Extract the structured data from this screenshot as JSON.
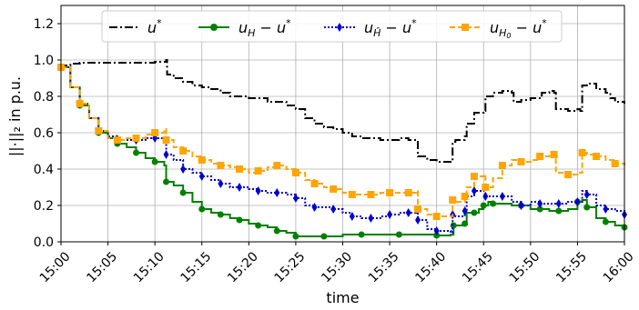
{
  "chart_data": {
    "type": "line",
    "xlabel": "time",
    "ylabel": "||·||₂ in p.u.",
    "x_ticks": [
      "15:00",
      "15:05",
      "15:10",
      "15:15",
      "15:20",
      "15:25",
      "15:30",
      "15:35",
      "15:40",
      "15:45",
      "15:50",
      "15:55",
      "16:00"
    ],
    "y_ticks": [
      "0.0",
      "0.2",
      "0.4",
      "0.6",
      "0.8",
      "1.0",
      "1.2"
    ],
    "xlim": [
      0,
      60
    ],
    "ylim": [
      0,
      1.3
    ],
    "grid": true,
    "legend_position": "top",
    "series": [
      {
        "name": "u*",
        "color": "#000000",
        "linestyle": "dashdot",
        "marker": "none",
        "points": [
          [
            0,
            0.96
          ],
          [
            0.5,
            0.97
          ],
          [
            1,
            0.98
          ],
          [
            2,
            0.985
          ],
          [
            4,
            0.985
          ],
          [
            6,
            0.985
          ],
          [
            8,
            0.985
          ],
          [
            10,
            0.99
          ],
          [
            11.2,
            1.0
          ],
          [
            11.3,
            0.92
          ],
          [
            12,
            0.9
          ],
          [
            13,
            0.88
          ],
          [
            14,
            0.86
          ],
          [
            15,
            0.85
          ],
          [
            16,
            0.84
          ],
          [
            17,
            0.82
          ],
          [
            18,
            0.8
          ],
          [
            20,
            0.79
          ],
          [
            22,
            0.77
          ],
          [
            24,
            0.75
          ],
          [
            25,
            0.73
          ],
          [
            26,
            0.68
          ],
          [
            27,
            0.65
          ],
          [
            28,
            0.63
          ],
          [
            29,
            0.62
          ],
          [
            30,
            0.6
          ],
          [
            31,
            0.58
          ],
          [
            32,
            0.57
          ],
          [
            34,
            0.56
          ],
          [
            35,
            0.56
          ],
          [
            36,
            0.57
          ],
          [
            37,
            0.56
          ],
          [
            37.8,
            0.56
          ],
          [
            38,
            0.47
          ],
          [
            39,
            0.45
          ],
          [
            40,
            0.44
          ],
          [
            41.5,
            0.44
          ],
          [
            41.7,
            0.55
          ],
          [
            42,
            0.56
          ],
          [
            43,
            0.58
          ],
          [
            43.2,
            0.65
          ],
          [
            44,
            0.71
          ],
          [
            45,
            0.72
          ],
          [
            45.2,
            0.8
          ],
          [
            46,
            0.82
          ],
          [
            47,
            0.83
          ],
          [
            48,
            0.82
          ],
          [
            48.2,
            0.77
          ],
          [
            49,
            0.78
          ],
          [
            50,
            0.79
          ],
          [
            51,
            0.79
          ],
          [
            51.2,
            0.82
          ],
          [
            52,
            0.83
          ],
          [
            52.5,
            0.82
          ],
          [
            52.7,
            0.73
          ],
          [
            54,
            0.72
          ],
          [
            55,
            0.73
          ],
          [
            55.3,
            0.72
          ],
          [
            55.5,
            0.86
          ],
          [
            56,
            0.87
          ],
          [
            57,
            0.84
          ],
          [
            58,
            0.82
          ],
          [
            58.5,
            0.79
          ],
          [
            59,
            0.77
          ],
          [
            60,
            0.76
          ]
        ]
      },
      {
        "name": "u_H − u*",
        "color": "#008000",
        "linestyle": "solid",
        "marker": "circle",
        "points": [
          [
            0,
            0.96
          ],
          [
            1,
            0.85
          ],
          [
            2,
            0.75
          ],
          [
            3,
            0.68
          ],
          [
            4,
            0.6
          ],
          [
            5,
            0.57
          ],
          [
            6,
            0.54
          ],
          [
            7,
            0.52
          ],
          [
            8,
            0.49
          ],
          [
            9,
            0.46
          ],
          [
            10,
            0.44
          ],
          [
            11,
            0.42
          ],
          [
            11.2,
            0.33
          ],
          [
            12,
            0.31
          ],
          [
            13,
            0.27
          ],
          [
            14,
            0.22
          ],
          [
            15,
            0.18
          ],
          [
            16,
            0.16
          ],
          [
            17,
            0.15
          ],
          [
            18,
            0.13
          ],
          [
            19,
            0.12
          ],
          [
            20,
            0.1
          ],
          [
            21,
            0.09
          ],
          [
            22,
            0.08
          ],
          [
            23,
            0.06
          ],
          [
            24,
            0.05
          ],
          [
            25,
            0.03
          ],
          [
            27,
            0.03
          ],
          [
            28,
            0.03
          ],
          [
            30,
            0.04
          ],
          [
            32,
            0.04
          ],
          [
            34,
            0.04
          ],
          [
            36,
            0.04
          ],
          [
            38,
            0.04
          ],
          [
            40,
            0.035
          ],
          [
            41.5,
            0.04
          ],
          [
            41.8,
            0.09
          ],
          [
            42,
            0.09
          ],
          [
            43,
            0.1
          ],
          [
            43.2,
            0.16
          ],
          [
            44,
            0.16
          ],
          [
            44.5,
            0.18
          ],
          [
            45,
            0.2
          ],
          [
            45.5,
            0.22
          ],
          [
            46,
            0.21
          ],
          [
            48,
            0.2
          ],
          [
            49,
            0.2
          ],
          [
            50,
            0.18
          ],
          [
            51,
            0.18
          ],
          [
            52,
            0.17
          ],
          [
            53,
            0.17
          ],
          [
            54,
            0.18
          ],
          [
            55,
            0.22
          ],
          [
            55.5,
            0.23
          ],
          [
            56,
            0.19
          ],
          [
            57,
            0.13
          ],
          [
            58,
            0.11
          ],
          [
            59,
            0.09
          ],
          [
            60,
            0.08
          ]
        ]
      },
      {
        "name": "u_Ĥ − u*",
        "color": "#0000cc",
        "linestyle": "dotted",
        "marker": "diamond",
        "points": [
          [
            0,
            0.96
          ],
          [
            1,
            0.85
          ],
          [
            2,
            0.76
          ],
          [
            3,
            0.68
          ],
          [
            4,
            0.61
          ],
          [
            5,
            0.58
          ],
          [
            6,
            0.56
          ],
          [
            7,
            0.56
          ],
          [
            8,
            0.56
          ],
          [
            9,
            0.57
          ],
          [
            10,
            0.57
          ],
          [
            11,
            0.56
          ],
          [
            11.2,
            0.48
          ],
          [
            12,
            0.45
          ],
          [
            13,
            0.4
          ],
          [
            14,
            0.38
          ],
          [
            15,
            0.36
          ],
          [
            16,
            0.34
          ],
          [
            17,
            0.32
          ],
          [
            18,
            0.3
          ],
          [
            19,
            0.3
          ],
          [
            20,
            0.29
          ],
          [
            21,
            0.28
          ],
          [
            22,
            0.27
          ],
          [
            23,
            0.27
          ],
          [
            24,
            0.26
          ],
          [
            25,
            0.24
          ],
          [
            26,
            0.2
          ],
          [
            27,
            0.19
          ],
          [
            28,
            0.19
          ],
          [
            29,
            0.18
          ],
          [
            30,
            0.16
          ],
          [
            31,
            0.14
          ],
          [
            32,
            0.13
          ],
          [
            33,
            0.13
          ],
          [
            34,
            0.14
          ],
          [
            35,
            0.15
          ],
          [
            36,
            0.16
          ],
          [
            37,
            0.16
          ],
          [
            37.8,
            0.17
          ],
          [
            38,
            0.12
          ],
          [
            39,
            0.07
          ],
          [
            40,
            0.06
          ],
          [
            41.5,
            0.05
          ],
          [
            41.7,
            0.15
          ],
          [
            42,
            0.14
          ],
          [
            43,
            0.17
          ],
          [
            43.2,
            0.25
          ],
          [
            44,
            0.28
          ],
          [
            45,
            0.3
          ],
          [
            45.2,
            0.25
          ],
          [
            46,
            0.25
          ],
          [
            47,
            0.25
          ],
          [
            48,
            0.22
          ],
          [
            49,
            0.2
          ],
          [
            50,
            0.22
          ],
          [
            51,
            0.21
          ],
          [
            52,
            0.21
          ],
          [
            53,
            0.21
          ],
          [
            54,
            0.22
          ],
          [
            55,
            0.22
          ],
          [
            55.5,
            0.28
          ],
          [
            56,
            0.26
          ],
          [
            57,
            0.2
          ],
          [
            58,
            0.18
          ],
          [
            59,
            0.17
          ],
          [
            60,
            0.15
          ]
        ]
      },
      {
        "name": "u_H₀ − u*",
        "color": "#ffa500",
        "linestyle": "dashed",
        "marker": "square",
        "points": [
          [
            0,
            0.96
          ],
          [
            1,
            0.85
          ],
          [
            2,
            0.76
          ],
          [
            3,
            0.68
          ],
          [
            4,
            0.61
          ],
          [
            5,
            0.57
          ],
          [
            6,
            0.56
          ],
          [
            7,
            0.57
          ],
          [
            8,
            0.57
          ],
          [
            9,
            0.59
          ],
          [
            10,
            0.6
          ],
          [
            11,
            0.62
          ],
          [
            11.2,
            0.56
          ],
          [
            12,
            0.52
          ],
          [
            13,
            0.5
          ],
          [
            14,
            0.47
          ],
          [
            15,
            0.45
          ],
          [
            16,
            0.43
          ],
          [
            17,
            0.42
          ],
          [
            18,
            0.41
          ],
          [
            19,
            0.4
          ],
          [
            20,
            0.38
          ],
          [
            21,
            0.39
          ],
          [
            22,
            0.41
          ],
          [
            23,
            0.42
          ],
          [
            24,
            0.4
          ],
          [
            25,
            0.38
          ],
          [
            26,
            0.34
          ],
          [
            27,
            0.32
          ],
          [
            28,
            0.3
          ],
          [
            29,
            0.29
          ],
          [
            30,
            0.27
          ],
          [
            31,
            0.26
          ],
          [
            32,
            0.26
          ],
          [
            33,
            0.26
          ],
          [
            34,
            0.27
          ],
          [
            35,
            0.27
          ],
          [
            36,
            0.27
          ],
          [
            37,
            0.27
          ],
          [
            37.8,
            0.28
          ],
          [
            38,
            0.18
          ],
          [
            39,
            0.15
          ],
          [
            40,
            0.14
          ],
          [
            41.5,
            0.14
          ],
          [
            41.7,
            0.23
          ],
          [
            42,
            0.22
          ],
          [
            43,
            0.25
          ],
          [
            43.2,
            0.3
          ],
          [
            44,
            0.36
          ],
          [
            45,
            0.37
          ],
          [
            45.2,
            0.3
          ],
          [
            46,
            0.35
          ],
          [
            47,
            0.42
          ],
          [
            48,
            0.45
          ],
          [
            49,
            0.44
          ],
          [
            50,
            0.45
          ],
          [
            51,
            0.47
          ],
          [
            52,
            0.48
          ],
          [
            52.5,
            0.48
          ],
          [
            52.7,
            0.38
          ],
          [
            54,
            0.37
          ],
          [
            55,
            0.38
          ],
          [
            55.5,
            0.49
          ],
          [
            56,
            0.48
          ],
          [
            57,
            0.47
          ],
          [
            58,
            0.45
          ],
          [
            59,
            0.43
          ],
          [
            60,
            0.42
          ]
        ]
      }
    ],
    "legend": {
      "ustar": "u",
      "ustar_sup": "*",
      "uh_main": "u",
      "uh_sub": "H",
      "uh_rest": " − u",
      "uh_sup": "*",
      "uhhat_main": "u",
      "uhhat_sub": "Ĥ",
      "uhhat_rest": " − u",
      "uhhat_sup": "*",
      "uh0_main": "u",
      "uh0_sub": "H",
      "uh0_subsub": "0",
      "uh0_rest": " − u",
      "uh0_sup": "*"
    }
  }
}
